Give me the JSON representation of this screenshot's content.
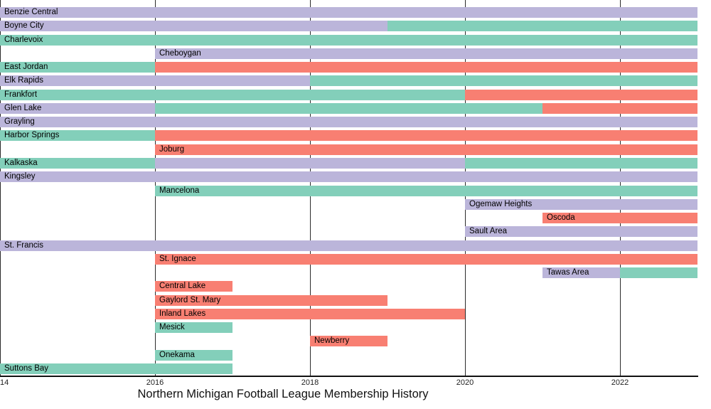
{
  "colors": {
    "purple": "#bbb5da",
    "teal": "#83cfba",
    "red": "#f87f72"
  },
  "chart_data": {
    "type": "bar",
    "subtype": "gantt-timeline",
    "title": "Northern Michigan Football League Membership History",
    "xlabel": "",
    "ylabel": "",
    "x_range": [
      2014,
      2023
    ],
    "grid": "vertical",
    "legend": "none",
    "x_ticks": [
      {
        "label": "14",
        "year": 2014
      },
      {
        "label": "2016",
        "year": 2016
      },
      {
        "label": "2018",
        "year": 2018
      },
      {
        "label": "2020",
        "year": 2020
      },
      {
        "label": "2022",
        "year": 2022
      }
    ],
    "teams": [
      {
        "name": "Benzie Central",
        "segments": [
          {
            "start": 2014,
            "end": 2023,
            "color": "purple"
          }
        ]
      },
      {
        "name": "Boyne City",
        "segments": [
          {
            "start": 2014,
            "end": 2019,
            "color": "purple"
          },
          {
            "start": 2019,
            "end": 2023,
            "color": "teal"
          }
        ]
      },
      {
        "name": "Charlevoix",
        "segments": [
          {
            "start": 2014,
            "end": 2023,
            "color": "teal"
          }
        ]
      },
      {
        "name": "Cheboygan",
        "segments": [
          {
            "start": 2016,
            "end": 2023,
            "color": "purple"
          }
        ]
      },
      {
        "name": "East Jordan",
        "segments": [
          {
            "start": 2014,
            "end": 2016,
            "color": "teal"
          },
          {
            "start": 2016,
            "end": 2023,
            "color": "red"
          }
        ]
      },
      {
        "name": "Elk Rapids",
        "segments": [
          {
            "start": 2014,
            "end": 2018,
            "color": "purple"
          },
          {
            "start": 2018,
            "end": 2023,
            "color": "teal"
          }
        ]
      },
      {
        "name": "Frankfort",
        "segments": [
          {
            "start": 2014,
            "end": 2020,
            "color": "teal"
          },
          {
            "start": 2020,
            "end": 2023,
            "color": "red"
          }
        ]
      },
      {
        "name": "Glen Lake",
        "segments": [
          {
            "start": 2014,
            "end": 2016,
            "color": "purple"
          },
          {
            "start": 2016,
            "end": 2021,
            "color": "teal"
          },
          {
            "start": 2021,
            "end": 2023,
            "color": "red"
          }
        ]
      },
      {
        "name": "Grayling",
        "segments": [
          {
            "start": 2014,
            "end": 2023,
            "color": "purple"
          }
        ]
      },
      {
        "name": "Harbor Springs",
        "segments": [
          {
            "start": 2014,
            "end": 2016,
            "color": "teal"
          },
          {
            "start": 2016,
            "end": 2023,
            "color": "red"
          }
        ]
      },
      {
        "name": "Joburg",
        "segments": [
          {
            "start": 2016,
            "end": 2023,
            "color": "red"
          }
        ]
      },
      {
        "name": "Kalkaska",
        "segments": [
          {
            "start": 2014,
            "end": 2016,
            "color": "teal"
          },
          {
            "start": 2016,
            "end": 2020,
            "color": "purple"
          },
          {
            "start": 2020,
            "end": 2023,
            "color": "teal"
          }
        ]
      },
      {
        "name": "Kingsley",
        "segments": [
          {
            "start": 2014,
            "end": 2023,
            "color": "purple"
          }
        ]
      },
      {
        "name": "Mancelona",
        "segments": [
          {
            "start": 2016,
            "end": 2023,
            "color": "teal"
          }
        ]
      },
      {
        "name": "Ogemaw Heights",
        "segments": [
          {
            "start": 2020,
            "end": 2023,
            "color": "purple"
          }
        ]
      },
      {
        "name": "Oscoda",
        "segments": [
          {
            "start": 2021,
            "end": 2023,
            "color": "red"
          }
        ]
      },
      {
        "name": "Sault Area",
        "segments": [
          {
            "start": 2020,
            "end": 2023,
            "color": "purple"
          }
        ]
      },
      {
        "name": "St. Francis",
        "segments": [
          {
            "start": 2014,
            "end": 2023,
            "color": "purple"
          }
        ]
      },
      {
        "name": "St. Ignace",
        "segments": [
          {
            "start": 2016,
            "end": 2023,
            "color": "red"
          }
        ]
      },
      {
        "name": "Tawas Area",
        "segments": [
          {
            "start": 2021,
            "end": 2022,
            "color": "purple"
          },
          {
            "start": 2022,
            "end": 2023,
            "color": "teal"
          }
        ]
      },
      {
        "name": "Central Lake",
        "segments": [
          {
            "start": 2016,
            "end": 2017,
            "color": "red"
          }
        ]
      },
      {
        "name": "Gaylord St. Mary",
        "segments": [
          {
            "start": 2016,
            "end": 2019,
            "color": "red"
          }
        ]
      },
      {
        "name": "Inland Lakes",
        "segments": [
          {
            "start": 2016,
            "end": 2020,
            "color": "red"
          }
        ]
      },
      {
        "name": "Mesick",
        "segments": [
          {
            "start": 2016,
            "end": 2017,
            "color": "teal"
          }
        ]
      },
      {
        "name": "Newberry",
        "segments": [
          {
            "start": 2018,
            "end": 2019,
            "color": "red"
          }
        ]
      },
      {
        "name": "Onekama",
        "segments": [
          {
            "start": 2016,
            "end": 2017,
            "color": "teal"
          }
        ]
      },
      {
        "name": "Suttons Bay",
        "segments": [
          {
            "start": 2014,
            "end": 2017,
            "color": "teal"
          }
        ]
      }
    ]
  }
}
